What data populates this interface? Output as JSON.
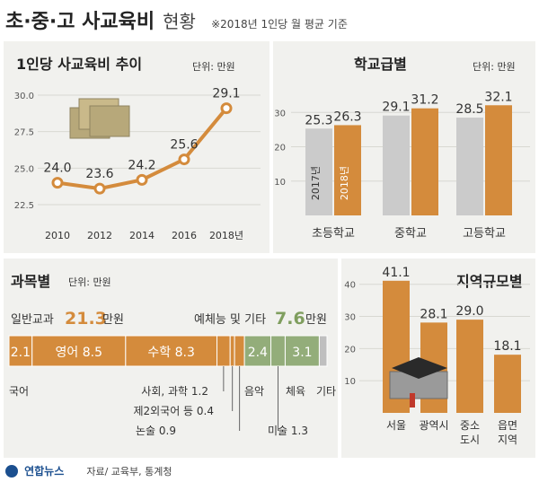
{
  "header": {
    "title": "초·중·고 사교육비",
    "title_suffix": "현황",
    "note": "※2018년 1인당 월 평균 기준"
  },
  "colors": {
    "orange": "#d48b3c",
    "gray": "#cbcbcb",
    "green": "#93ad7a",
    "line": "#d48b3c"
  },
  "sections": {
    "trend": {
      "title": "1인당 사교육비 추이",
      "unit": "단위: 만원"
    },
    "school": {
      "title": "학교급별",
      "unit": "단위: 만원"
    },
    "subject": {
      "title": "과목별",
      "unit": "단위: 만원"
    },
    "region": {
      "title": "지역규모별"
    }
  },
  "footer": {
    "logo_text": "연합뉴스",
    "source": "자료/ 교육부, 통계청"
  },
  "chart_data": [
    {
      "type": "line",
      "title": "1인당 사교육비 추이",
      "unit": "단위: 만원",
      "x": [
        "2010",
        "2012",
        "2014",
        "2016",
        "2018년"
      ],
      "values": [
        24.0,
        23.6,
        24.2,
        25.6,
        29.1
      ],
      "value_labels": [
        "24.0",
        "23.6",
        "24.2",
        "25.6",
        "29.1"
      ],
      "yticks": [
        "30.0",
        "27.5",
        "25.0",
        "22.5"
      ],
      "ylim": [
        22.5,
        30.0
      ]
    },
    {
      "type": "bar",
      "title": "학교급별",
      "unit": "단위: 만원",
      "categories": [
        "초등학교",
        "중학교",
        "고등학교"
      ],
      "series": [
        {
          "name": "2017년",
          "values": [
            25.3,
            29.1,
            28.5
          ]
        },
        {
          "name": "2018년",
          "values": [
            26.3,
            31.2,
            32.1
          ]
        }
      ],
      "value_labels": [
        [
          "25.3",
          "29.1",
          "28.5"
        ],
        [
          "26.3",
          "31.2",
          "32.1"
        ]
      ],
      "yticks": [
        "30",
        "20",
        "10"
      ],
      "ylim": [
        0,
        34
      ]
    },
    {
      "type": "bar",
      "title": "과목별",
      "unit": "단위: 만원",
      "groups": [
        {
          "label": "일반교과",
          "total": "21.3",
          "total_unit": "만원"
        },
        {
          "label": "예체능 및 기타",
          "total": "7.6",
          "total_unit": "만원"
        }
      ],
      "segments": [
        {
          "name": "국어",
          "value": 2.1,
          "label": "2.1",
          "group": "일반교과"
        },
        {
          "name": "영어",
          "value": 8.5,
          "label": "8.5",
          "group": "일반교과"
        },
        {
          "name": "수학",
          "value": 8.3,
          "label": "8.3",
          "group": "일반교과"
        },
        {
          "name": "사회, 과학",
          "value": 1.2,
          "label": "1.2",
          "group": "일반교과"
        },
        {
          "name": "제2외국어 등",
          "value": 0.4,
          "label": "0.4",
          "group": "일반교과"
        },
        {
          "name": "논술",
          "value": 0.9,
          "label": "0.9",
          "group": "일반교과"
        },
        {
          "name": "음악",
          "value": 2.4,
          "label": "2.4",
          "group": "예체능 및 기타"
        },
        {
          "name": "미술",
          "value": 1.3,
          "label": "1.3",
          "group": "예체능 및 기타"
        },
        {
          "name": "체육",
          "value": 3.1,
          "label": "3.1",
          "group": "예체능 및 기타"
        },
        {
          "name": "기타",
          "value": 0.7,
          "label": "",
          "group": "예체능 및 기타"
        }
      ]
    },
    {
      "type": "bar",
      "title": "지역규모별",
      "categories": [
        "서울",
        "광역시",
        "중소 도시",
        "읍면 지역"
      ],
      "values": [
        41.1,
        28.1,
        29.0,
        18.1
      ],
      "value_labels": [
        "41.1",
        "28.1",
        "29.0",
        "18.1"
      ],
      "yticks": [
        "40",
        "30",
        "20",
        "10"
      ],
      "ylim": [
        0,
        43
      ]
    }
  ]
}
